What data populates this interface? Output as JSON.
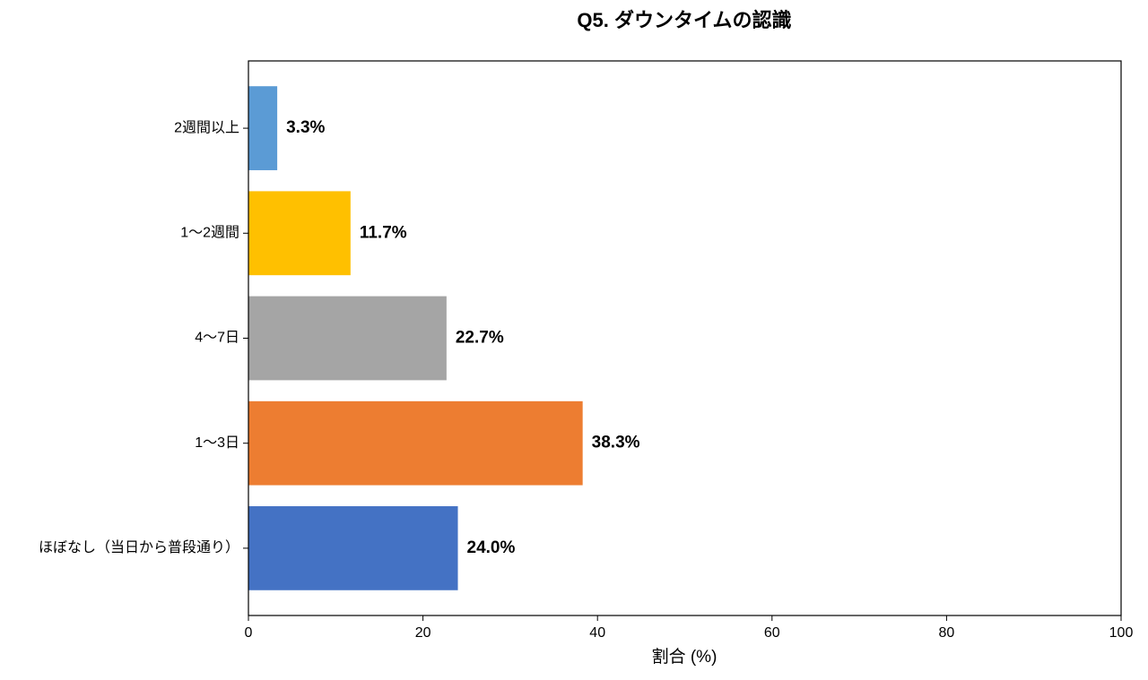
{
  "chart_data": {
    "type": "barh",
    "title": "Q5. ダウンタイムの認識",
    "xlabel": "割合 (%)",
    "categories": [
      "ほぼなし（当日から普段通り）",
      "1〜3日",
      "4〜7日",
      "1〜2週間",
      "2週間以上"
    ],
    "values": [
      24.0,
      38.3,
      22.7,
      11.7,
      3.3
    ],
    "value_labels": [
      "24.0%",
      "38.3%",
      "22.7%",
      "11.7%",
      "3.3%"
    ],
    "colors": [
      "#4472c4",
      "#ed7d31",
      "#a5a5a5",
      "#ffc000",
      "#5b9bd5"
    ],
    "xlim": [
      0,
      100
    ],
    "xticks": [
      0,
      20,
      40,
      60,
      80,
      100
    ],
    "grid": false
  }
}
